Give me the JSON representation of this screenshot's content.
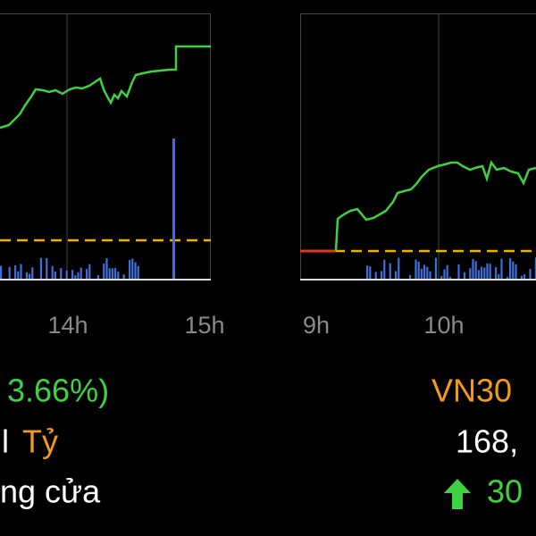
{
  "left_panel": {
    "time_labels": [
      "14h",
      "15h"
    ],
    "change": "3.66%)",
    "value_cut": "l",
    "unit": "Tỷ",
    "status": "ng cửa"
  },
  "right_panel": {
    "time_labels": [
      "9h",
      "10h"
    ],
    "index_name": "VN30",
    "value": "168,",
    "change": "30"
  }
}
